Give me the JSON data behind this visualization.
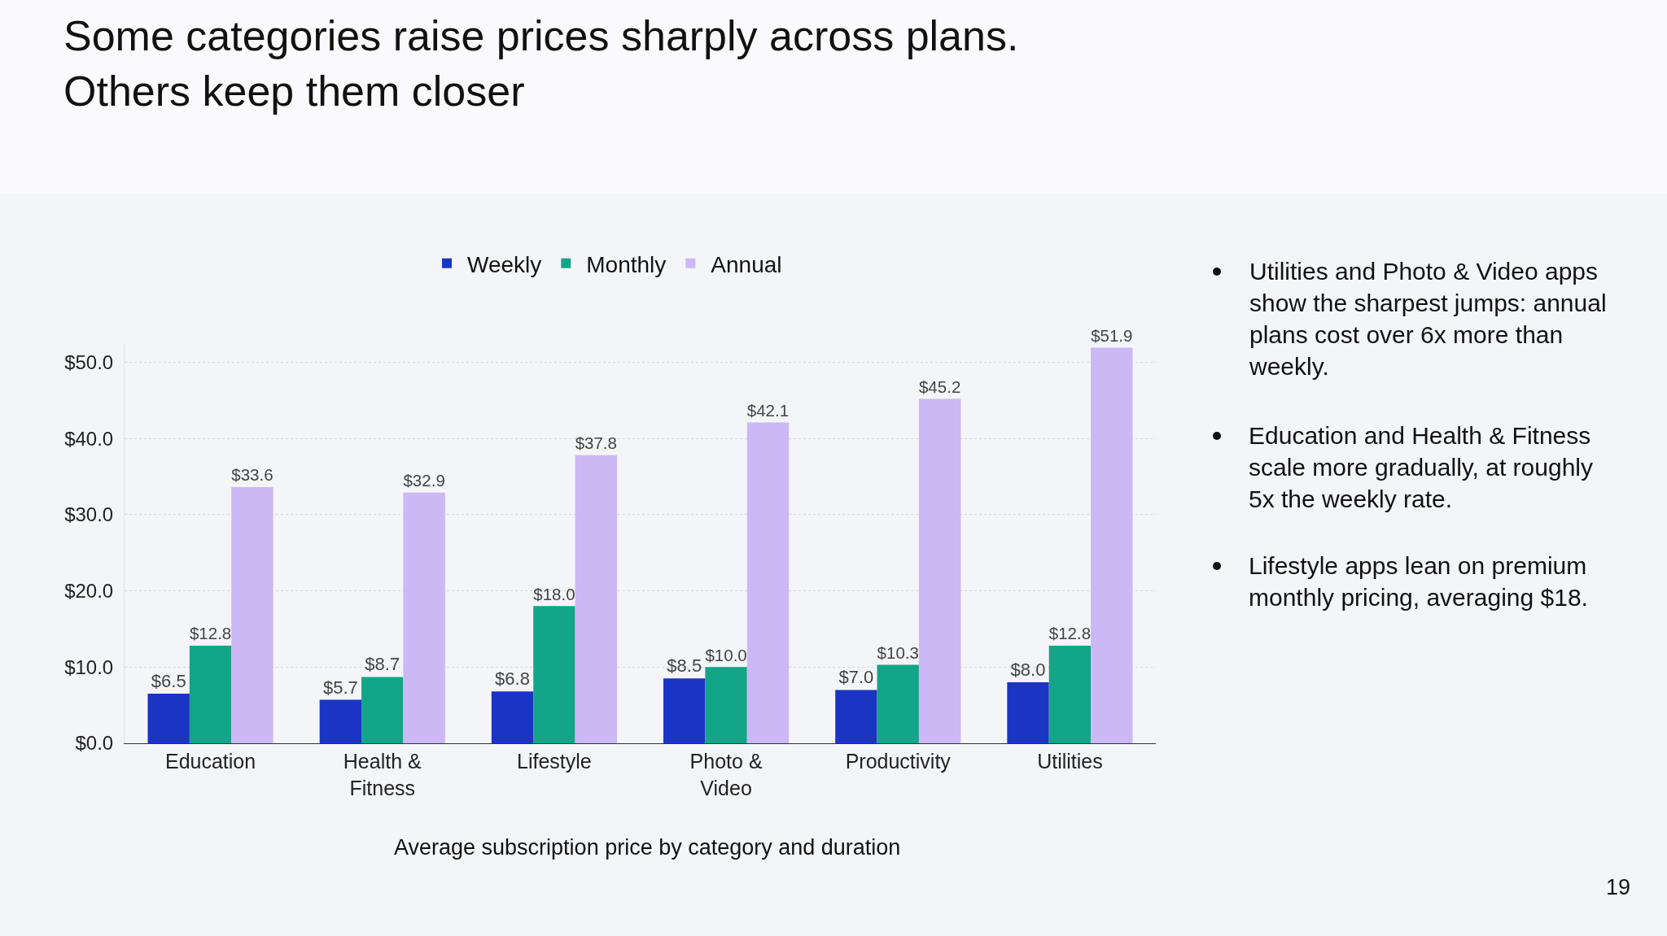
{
  "chart_data": {
    "type": "bar",
    "title": "Some categories raise prices sharply across plans. Others keep them closer",
    "categories": [
      "Education",
      "Health & Fitness",
      "Lifestyle",
      "Photo & Video",
      "Productivity",
      "Utilities"
    ],
    "series": [
      {
        "name": "Weekly",
        "color": "#1a35c4",
        "values": [
          6.5,
          5.7,
          6.8,
          8.5,
          7.0,
          8.0
        ],
        "value_labels": [
          "$6.5",
          "$5.7",
          "$6.8",
          "$8.5",
          "$7.0",
          "$8.0"
        ]
      },
      {
        "name": "Monthly",
        "color": "#13a587",
        "values": [
          12.8,
          8.7,
          18.0,
          10.0,
          10.3,
          12.8
        ],
        "value_labels": [
          "$12.8",
          "$8.7",
          "$18.0",
          "$10.0",
          "$10.3",
          "$12.8"
        ]
      },
      {
        "name": "Annual",
        "color": "#cbb8f5",
        "values": [
          33.6,
          32.9,
          37.8,
          42.1,
          45.2,
          51.9
        ],
        "value_labels": [
          "$33.6",
          "$32.9",
          "$37.8",
          "$42.1",
          "$45.2",
          "$51.9"
        ]
      }
    ],
    "ylim": [
      0,
      52.5
    ],
    "yticks": [
      {
        "value": 0,
        "label": "$0.0"
      },
      {
        "value": 10,
        "label": "$10.0"
      },
      {
        "value": 20,
        "label": "$20.0"
      },
      {
        "value": 30,
        "label": "$30.0"
      },
      {
        "value": 40,
        "label": "$40.0"
      },
      {
        "value": 50,
        "label": "$50.0"
      }
    ],
    "grid": "y",
    "legend": "top",
    "annotations": [
      "Average subscription price by category and duration",
      "Utilities and Photo & Video apps show the sharpest jumps: annual plans cost over 6x more than weekly.",
      "Education and Health & Fitness scale more gradually, at roughly 5x the weekly rate.",
      "Lifestyle apps lean on premium monthly pricing, averaging $18.",
      "19"
    ]
  }
}
